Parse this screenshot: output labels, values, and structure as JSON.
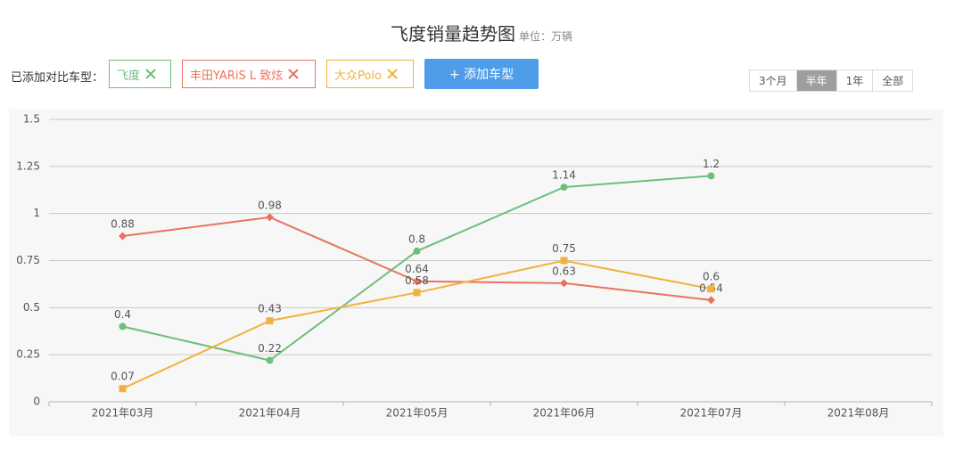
{
  "chart_data": {
    "type": "line",
    "title": "飞度销量趋势图",
    "subtitle": "单位：万辆",
    "categories": [
      "2021年03月",
      "2021年04月",
      "2021年05月",
      "2021年06月",
      "2021年07月",
      "2021年08月"
    ],
    "series": [
      {
        "name": "飞度",
        "color": "#6cbf7b",
        "marker": "circle",
        "values": [
          0.4,
          0.22,
          0.8,
          1.14,
          1.2,
          null
        ]
      },
      {
        "name": "丰田YARiS L 致炫",
        "color": "#e8735f",
        "marker": "diamond",
        "values": [
          0.88,
          0.98,
          0.64,
          0.63,
          0.54,
          null
        ]
      },
      {
        "name": "大众Polo",
        "color": "#f2b13c",
        "marker": "square",
        "values": [
          0.07,
          0.43,
          0.58,
          0.75,
          0.6,
          null
        ]
      }
    ],
    "ylim": [
      0,
      1.5
    ],
    "yticks": [
      0,
      0.25,
      0.5,
      0.75,
      1,
      1.25,
      1.5
    ],
    "grid": true
  },
  "ui": {
    "compare_label": "已添加对比车型：",
    "add_button": "+ 添加车型",
    "ranges": [
      "3个月",
      "半年",
      "1年",
      "全部"
    ]
  }
}
